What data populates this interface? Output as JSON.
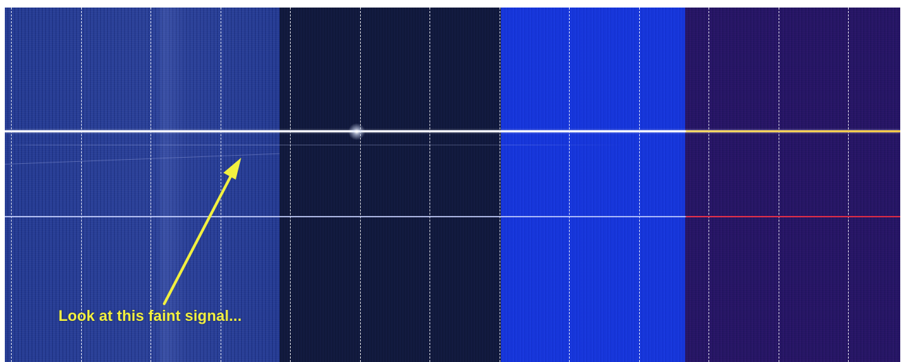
{
  "annotation": {
    "text": "Look at this faint signal...",
    "color": "#f2f040"
  },
  "panels": [
    {
      "id": "panel-1",
      "color": "#1c3088"
    },
    {
      "id": "panel-2",
      "color": "#0d1539"
    },
    {
      "id": "panel-3",
      "color": "#1232d8"
    },
    {
      "id": "panel-4",
      "color": "#1f1560"
    }
  ],
  "signal_colors": {
    "strong_line": "#f4f6ff",
    "strong_line_right": "#f6c94a",
    "mid_line": "#c8d2ff",
    "mid_line_right": "#d62a46"
  }
}
